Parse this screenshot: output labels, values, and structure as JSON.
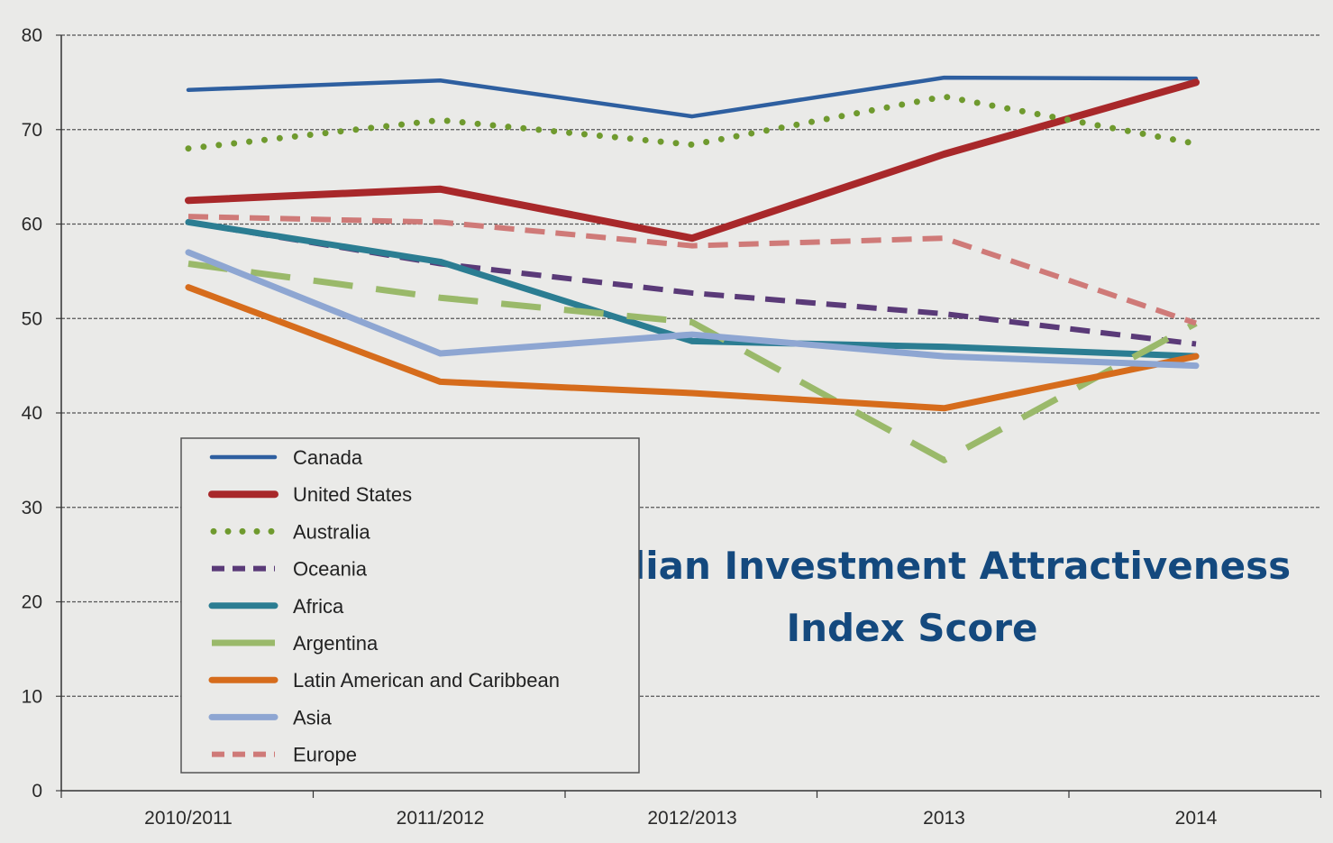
{
  "chart_data": {
    "type": "line",
    "title_lines": [
      "Median Investment Attractiveness",
      "Index Score"
    ],
    "xlabel": "",
    "ylabel": "",
    "categories": [
      "2010/2011",
      "2011/2012",
      "2012/2013",
      "2013",
      "2014"
    ],
    "ylim": [
      0,
      80
    ],
    "yticks": [
      "0",
      "10",
      "20",
      "30",
      "40",
      "50",
      "60",
      "70",
      "80"
    ],
    "grid": true,
    "legend_position": "bottom-left",
    "series": [
      {
        "name": "Canada",
        "values": [
          74.2,
          75.2,
          71.4,
          75.5,
          75.4
        ],
        "color": "#2e5fa0",
        "style": "solid"
      },
      {
        "name": "United States",
        "values": [
          62.5,
          63.7,
          58.5,
          67.4,
          75.0
        ],
        "color": "#a8282a",
        "style": "solid"
      },
      {
        "name": "Australia",
        "values": [
          68.0,
          71.0,
          68.4,
          73.5,
          68.5
        ],
        "color": "#6f9a2e",
        "style": "dotted"
      },
      {
        "name": "Oceania",
        "values": [
          60.2,
          55.8,
          52.7,
          50.5,
          47.3
        ],
        "color": "#5a3a78",
        "style": "dashed"
      },
      {
        "name": "Africa",
        "values": [
          60.2,
          56.0,
          47.6,
          47.0,
          46.0
        ],
        "color": "#2b7d92",
        "style": "solid"
      },
      {
        "name": "Argentina",
        "values": [
          55.8,
          52.2,
          49.6,
          35.0,
          49.5
        ],
        "color": "#9ab96a",
        "style": "longdash"
      },
      {
        "name": "Latin American and Caribbean",
        "values": [
          53.3,
          43.3,
          42.1,
          40.5,
          46.0
        ],
        "color": "#d66c1c",
        "style": "solid"
      },
      {
        "name": "Asia",
        "values": [
          57.0,
          46.3,
          48.3,
          46.0,
          45.0
        ],
        "color": "#8ea6d2",
        "style": "solid"
      },
      {
        "name": "Europe",
        "values": [
          60.8,
          60.2,
          57.7,
          58.5,
          49.5
        ],
        "color": "#cf7a78",
        "style": "dashed"
      }
    ]
  }
}
